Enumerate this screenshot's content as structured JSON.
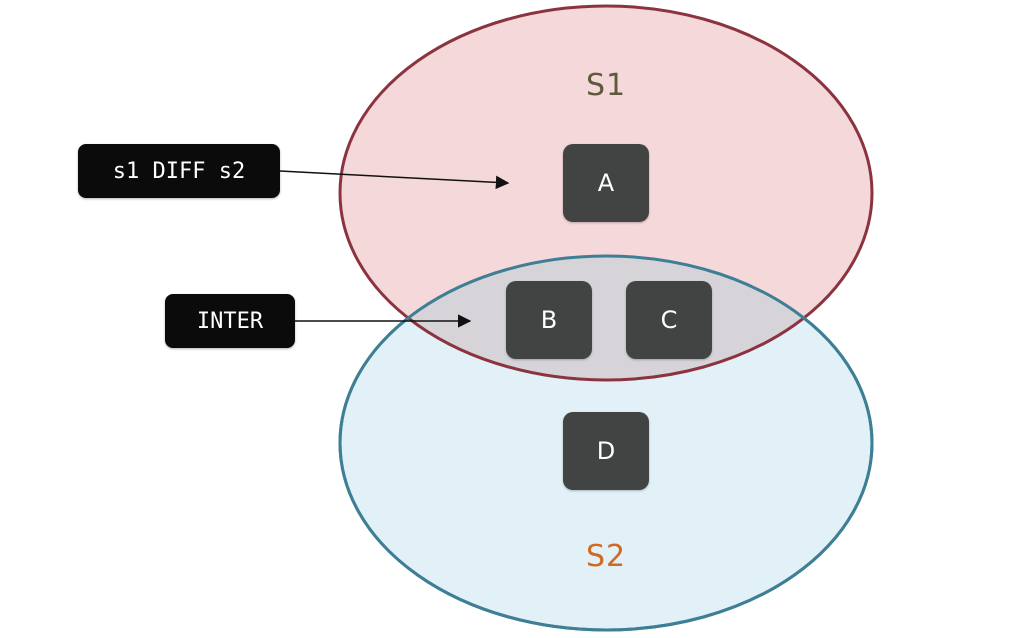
{
  "sets": {
    "s1": {
      "label": "S1",
      "fill": "#f5d8da",
      "stroke": "#8b3440",
      "label_color": "#5e5a3c"
    },
    "s2": {
      "label": "S2",
      "fill": "#e2f1f7",
      "stroke": "#3e7f95",
      "label_color": "#d06a22"
    },
    "intersection_fill": "#d6d4d9"
  },
  "elements": [
    {
      "label": "A",
      "region": "s1-only"
    },
    {
      "label": "B",
      "region": "intersection"
    },
    {
      "label": "C",
      "region": "intersection"
    },
    {
      "label": "D",
      "region": "s2-only"
    }
  ],
  "callouts": {
    "diff": {
      "label": "s1 DIFF s2",
      "points_to": "s1-only"
    },
    "inter": {
      "label": "INTER",
      "points_to": "intersection"
    }
  }
}
